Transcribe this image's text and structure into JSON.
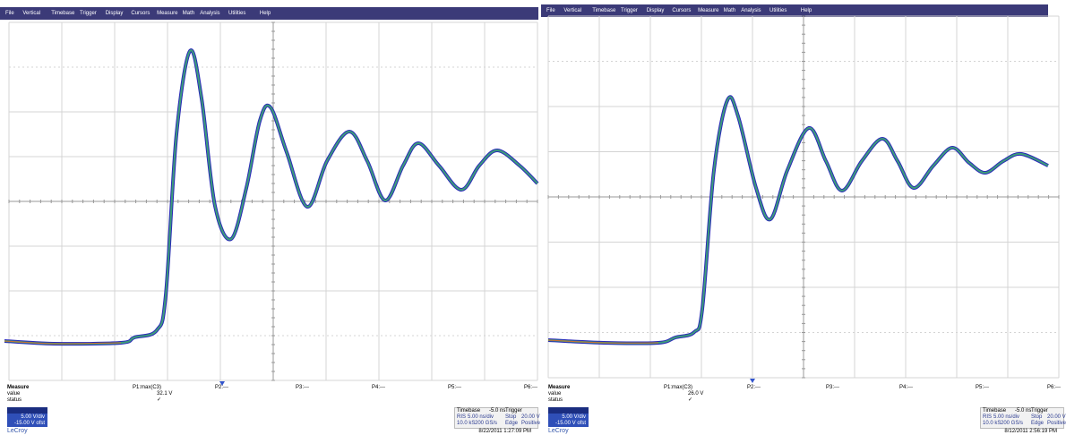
{
  "panels": [
    {
      "menu": [
        "File",
        "Vertical",
        "Timebase",
        "Trigger",
        "Display",
        "Cursors",
        "Measure",
        "Math",
        "Analysis",
        "Utilities",
        "Help"
      ],
      "measure": {
        "title": "Measure",
        "rows": [
          "value",
          "status"
        ],
        "params": [
          {
            "name": "P1:max(C3)",
            "value": "32.1 V",
            "status": "✓"
          },
          {
            "name": "P2:---"
          },
          {
            "name": "P3:---"
          },
          {
            "name": "P4:---"
          },
          {
            "name": "P5:---"
          },
          {
            "name": "P6:---"
          }
        ]
      },
      "channel": [
        "5.00 V/div",
        "-15.00 V ofst"
      ],
      "timebase": [
        [
          "Timebase",
          "-5.0 ns",
          "Trigger"
        ],
        [
          "RIS",
          "5.00 ns/div",
          "Stop",
          "20.00 V"
        ],
        [
          "10.0 kS",
          "200 GS/s",
          "Edge",
          "Positive"
        ]
      ],
      "datetime": "8/22/2011 1:27:09 PM",
      "brand": "LeCroy"
    },
    {
      "menu": [
        "File",
        "Vertical",
        "Timebase",
        "Trigger",
        "Display",
        "Cursors",
        "Measure",
        "Math",
        "Analysis",
        "Utilities",
        "Help"
      ],
      "measure": {
        "title": "Measure",
        "rows": [
          "value",
          "status"
        ],
        "params": [
          {
            "name": "P1:max(C3)",
            "value": "26.0 V",
            "status": "✓"
          },
          {
            "name": "P2:---"
          },
          {
            "name": "P3:---"
          },
          {
            "name": "P4:---"
          },
          {
            "name": "P5:---"
          },
          {
            "name": "P6:---"
          }
        ]
      },
      "channel": [
        "5.00 V/div",
        "-15.00 V ofst"
      ],
      "timebase": [
        [
          "Timebase",
          "-5.0 ns",
          "Trigger"
        ],
        [
          "RIS",
          "5.00 ns/div",
          "Stop",
          "20.00 V"
        ],
        [
          "10.0 kS",
          "200 GS/s",
          "Edge",
          "Positive"
        ]
      ],
      "datetime": "8/12/2011 2:56:19 PM",
      "brand": "LeCroy"
    }
  ]
}
